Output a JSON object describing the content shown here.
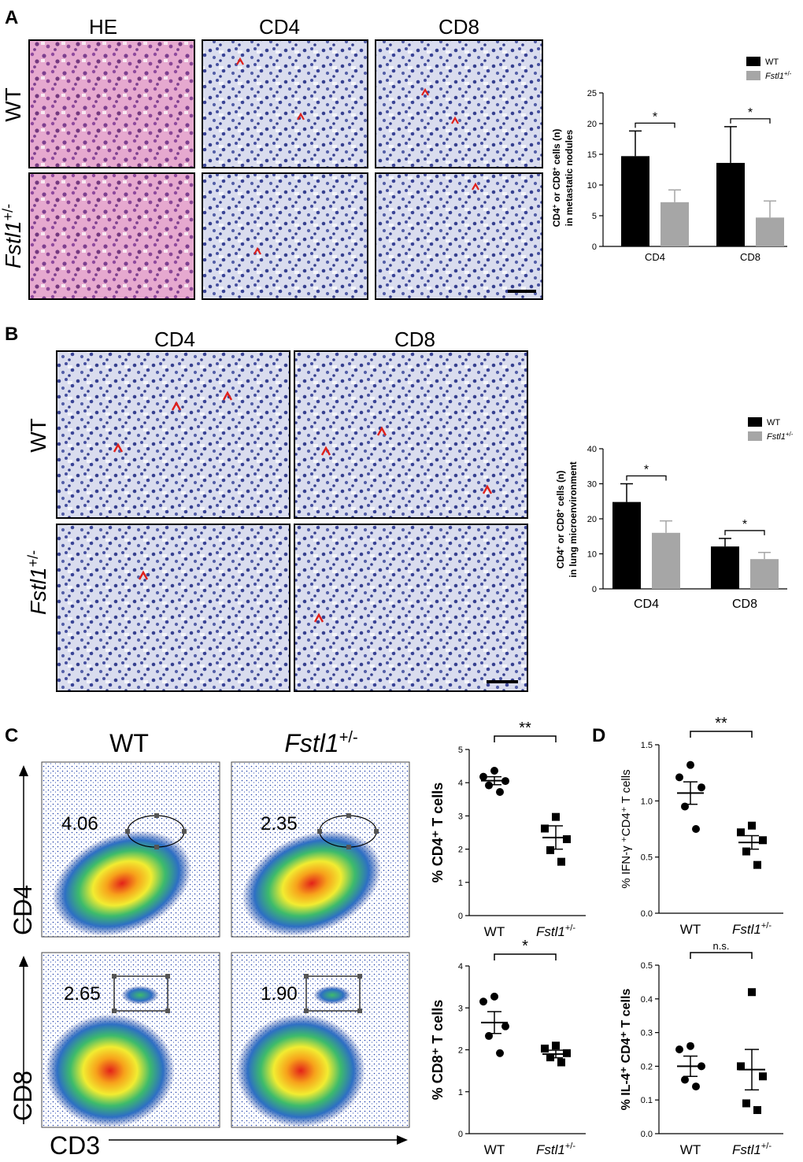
{
  "panels": {
    "A": {
      "letter": "A",
      "columns": [
        "HE",
        "CD4",
        "CD8"
      ],
      "rows": [
        "WT",
        "Fstl1",
        "+/-"
      ],
      "chart": {
        "legend": [
          {
            "label": "WT",
            "color": "#000000"
          },
          {
            "label": "Fstl1",
            "sup": "+/-",
            "color": "#a6a6a6"
          }
        ],
        "ylabel_lines": [
          "CD4",
          "+",
          " or CD8",
          "+",
          " cells (n)",
          "in metastatic nodules"
        ]
      }
    },
    "B": {
      "letter": "B",
      "columns": [
        "CD4",
        "CD8"
      ],
      "rows": [
        "WT",
        "Fstl1",
        "+/-"
      ],
      "chart": {
        "legend": [
          {
            "label": "WT",
            "color": "#000000"
          },
          {
            "label": "Fstl1",
            "sup": "+/-",
            "color": "#a6a6a6"
          }
        ],
        "ylabel_lines": [
          "CD4",
          "+",
          " or CD8",
          "+",
          " cells (n)",
          "in lung microenvironment"
        ]
      }
    },
    "C": {
      "letter": "C",
      "columns": [
        "WT",
        "Fstl1",
        "+/-"
      ],
      "flow_values": [
        "4.06",
        "2.35",
        "2.65",
        "1.90"
      ],
      "flow_axes": [
        "CD4",
        "CD8",
        "CD3"
      ]
    },
    "D": {
      "letter": "D"
    }
  },
  "chart_data": [
    {
      "id": "A-bar",
      "type": "bar",
      "categories": [
        "CD4",
        "CD8"
      ],
      "series": [
        {
          "name": "WT",
          "values": [
            14.7,
            13.6
          ],
          "errors": [
            4.1,
            5.9
          ]
        },
        {
          "name": "Fstl1+/-",
          "values": [
            7.2,
            4.7
          ],
          "errors": [
            2.0,
            2.7
          ]
        }
      ],
      "ylim": [
        0,
        25
      ],
      "yticks": [
        "0",
        "5",
        "10",
        "15",
        "20",
        "25"
      ],
      "significance": [
        "*",
        "*"
      ]
    },
    {
      "id": "B-bar",
      "type": "bar",
      "categories": [
        "CD4",
        "CD8"
      ],
      "series": [
        {
          "name": "WT",
          "values": [
            24.8,
            12.1
          ],
          "errors": [
            5.2,
            2.3
          ]
        },
        {
          "name": "Fstl1+/-",
          "values": [
            16.0,
            8.5
          ],
          "errors": [
            3.4,
            1.9
          ]
        }
      ],
      "ylim": [
        0,
        40
      ],
      "yticks": [
        "0",
        "10",
        "20",
        "30",
        "40"
      ],
      "significance": [
        "*",
        "*"
      ]
    },
    {
      "id": "C-top",
      "type": "scatter",
      "ylabel": "% CD4⁺ T cells",
      "categories": [
        "WT",
        "Fstl1+/-"
      ],
      "groups": [
        {
          "name": "WT",
          "marker": "circle",
          "points": [
            4.36,
            4.18,
            4.05,
            3.92,
            3.72
          ],
          "mean": 4.06,
          "sem": 0.12
        },
        {
          "name": "Fstl1+/-",
          "marker": "square",
          "points": [
            2.97,
            2.62,
            2.3,
            1.97,
            1.62
          ],
          "mean": 2.35,
          "sem": 0.35
        }
      ],
      "ylim": [
        0,
        5
      ],
      "yticks": [
        "0",
        "1",
        "2",
        "3",
        "4",
        "5"
      ],
      "significance": "**"
    },
    {
      "id": "C-bottom",
      "type": "scatter",
      "ylabel": "% CD8⁺ T cells",
      "categories": [
        "WT",
        "Fstl1+/-"
      ],
      "groups": [
        {
          "name": "WT",
          "marker": "circle",
          "points": [
            3.27,
            3.15,
            2.56,
            2.33,
            1.92
          ],
          "mean": 2.65,
          "sem": 0.26
        },
        {
          "name": "Fstl1+/-",
          "marker": "square",
          "points": [
            2.1,
            2.03,
            1.92,
            1.82,
            1.7
          ],
          "mean": 1.9,
          "sem": 0.09
        }
      ],
      "ylim": [
        0,
        4
      ],
      "yticks": [
        "0",
        "1",
        "2",
        "3",
        "4"
      ],
      "significance": "*"
    },
    {
      "id": "D-top",
      "type": "scatter",
      "ylabel": "% IFN-γ ⁺CD4⁺ T cells",
      "categories": [
        "WT",
        "Fstl1+/-"
      ],
      "groups": [
        {
          "name": "WT",
          "marker": "circle",
          "points": [
            1.32,
            1.21,
            1.12,
            0.95,
            0.75
          ],
          "mean": 1.07,
          "sem": 0.1
        },
        {
          "name": "Fstl1+/-",
          "marker": "square",
          "points": [
            0.78,
            0.72,
            0.65,
            0.55,
            0.43
          ],
          "mean": 0.63,
          "sem": 0.06
        }
      ],
      "ylim": [
        0,
        1.5
      ],
      "yticks": [
        "0.0",
        "0.5",
        "1.0",
        "1.5"
      ],
      "significance": "**"
    },
    {
      "id": "D-bottom",
      "type": "scatter",
      "ylabel": "% IL-4⁺ CD4⁺ T cells",
      "categories": [
        "WT",
        "Fstl1+/-"
      ],
      "groups": [
        {
          "name": "WT",
          "marker": "circle",
          "points": [
            0.26,
            0.25,
            0.2,
            0.16,
            0.14
          ],
          "mean": 0.2,
          "sem": 0.03
        },
        {
          "name": "Fstl1+/-",
          "marker": "square",
          "points": [
            0.42,
            0.2,
            0.17,
            0.09,
            0.07
          ],
          "mean": 0.19,
          "sem": 0.06
        }
      ],
      "ylim": [
        0,
        0.5
      ],
      "yticks": [
        "0.0",
        "0.1",
        "0.2",
        "0.3",
        "0.4",
        "0.5"
      ],
      "significance": "n.s."
    }
  ]
}
